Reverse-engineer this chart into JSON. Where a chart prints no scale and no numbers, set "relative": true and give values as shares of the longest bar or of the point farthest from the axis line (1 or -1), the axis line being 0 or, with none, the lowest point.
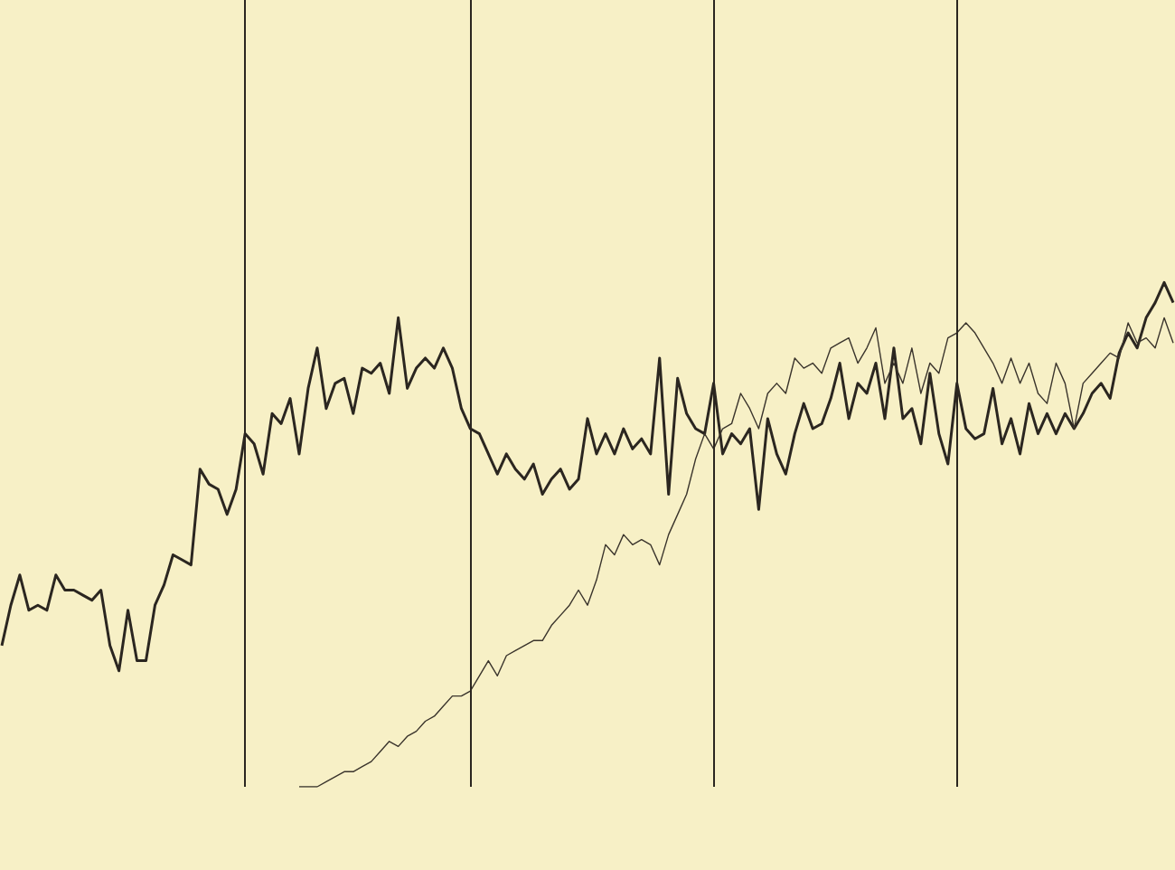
{
  "chart_data": {
    "type": "line",
    "relative": true,
    "tick_labels": false,
    "categories": [
      null,
      null,
      null,
      null,
      null,
      null,
      null,
      null,
      null,
      null,
      null,
      null,
      null,
      null,
      null,
      null,
      null,
      null,
      null,
      null,
      null,
      null,
      null,
      null,
      null,
      null,
      null,
      null,
      null,
      null,
      null,
      null,
      null,
      null,
      null,
      null,
      null,
      null,
      null,
      null,
      null,
      null,
      null,
      null,
      null,
      null,
      null,
      null,
      null,
      null,
      null,
      null,
      null,
      null,
      null,
      null,
      null,
      null,
      null,
      null,
      null,
      null,
      null,
      null,
      null,
      null,
      null,
      null,
      null,
      null,
      null,
      null,
      null,
      null,
      null,
      null,
      null,
      null,
      null,
      null,
      null,
      null,
      null,
      null,
      null,
      null,
      null,
      null,
      null,
      null,
      null,
      null,
      null,
      null,
      null,
      null,
      null,
      null,
      null,
      null,
      null,
      null,
      null,
      null,
      null,
      null,
      null,
      null,
      null,
      null,
      null,
      null,
      null,
      null,
      null,
      null,
      null,
      null,
      null,
      null,
      null,
      null,
      null,
      null,
      null,
      null,
      null,
      null,
      null,
      null,
      null
    ],
    "series": [
      {
        "color": "#2b2620",
        "values": [
          0.28,
          0.36,
          0.42,
          0.35,
          0.36,
          0.35,
          0.42,
          0.39,
          0.39,
          0.38,
          0.37,
          0.39,
          0.28,
          0.23,
          0.35,
          0.25,
          0.25,
          0.36,
          0.4,
          0.46,
          0.45,
          0.44,
          0.63,
          0.6,
          0.59,
          0.54,
          0.59,
          0.7,
          0.68,
          0.62,
          0.74,
          0.72,
          0.77,
          0.66,
          0.79,
          0.87,
          0.75,
          0.8,
          0.81,
          0.74,
          0.83,
          0.82,
          0.84,
          0.78,
          0.93,
          0.79,
          0.83,
          0.85,
          0.83,
          0.87,
          0.83,
          0.75,
          0.71,
          0.7,
          0.66,
          0.62,
          0.66,
          0.63,
          0.61,
          0.64,
          0.58,
          0.61,
          0.63,
          0.59,
          0.61,
          0.73,
          0.66,
          0.7,
          0.66,
          0.71,
          0.67,
          0.69,
          0.66,
          0.85,
          0.58,
          0.81,
          0.74,
          0.71,
          0.7,
          0.8,
          0.66,
          0.7,
          0.68,
          0.71,
          0.55,
          0.73,
          0.66,
          0.62,
          0.7,
          0.76,
          0.71,
          0.72,
          0.77,
          0.84,
          0.73,
          0.8,
          0.78,
          0.84,
          0.73,
          0.87,
          0.73,
          0.75,
          0.68,
          0.82,
          0.7,
          0.64,
          0.8,
          0.71,
          0.69,
          0.7,
          0.79,
          0.68,
          0.73,
          0.66,
          0.76,
          0.7,
          0.74,
          0.7,
          0.74,
          0.71,
          0.74,
          0.78,
          0.8,
          0.77,
          0.86,
          0.9,
          0.87,
          0.93,
          0.96,
          1,
          0.96
        ]
      },
      {
        "color": "#3a342c",
        "values": [
          null,
          null,
          null,
          null,
          null,
          null,
          null,
          null,
          null,
          null,
          null,
          null,
          null,
          null,
          null,
          null,
          null,
          null,
          null,
          null,
          null,
          null,
          null,
          null,
          null,
          null,
          null,
          null,
          null,
          null,
          null,
          null,
          null,
          0,
          0,
          0,
          0.01,
          0.02,
          0.03,
          0.03,
          0.04,
          0.05,
          0.07,
          0.09,
          0.08,
          0.1,
          0.11,
          0.13,
          0.14,
          0.16,
          0.18,
          0.18,
          0.19,
          0.22,
          0.25,
          0.22,
          0.26,
          0.27,
          0.28,
          0.29,
          0.29,
          0.32,
          0.34,
          0.36,
          0.39,
          0.36,
          0.41,
          0.48,
          0.46,
          0.5,
          0.48,
          0.49,
          0.48,
          0.44,
          0.5,
          0.54,
          0.58,
          0.65,
          0.7,
          0.67,
          0.71,
          0.72,
          0.78,
          0.75,
          0.71,
          0.78,
          0.8,
          0.78,
          0.85,
          0.83,
          0.84,
          0.82,
          0.87,
          0.88,
          0.89,
          0.84,
          0.87,
          0.91,
          0.8,
          0.84,
          0.8,
          0.87,
          0.78,
          0.84,
          0.82,
          0.89,
          0.9,
          0.92,
          0.9,
          0.87,
          0.84,
          0.8,
          0.85,
          0.8,
          0.84,
          0.78,
          0.76,
          0.84,
          0.8,
          0.71,
          0.8,
          0.82,
          0.84,
          0.86,
          0.85,
          0.92,
          0.88,
          0.89,
          0.87,
          0.93,
          0.88
        ]
      }
    ],
    "line_style": "solid"
  }
}
